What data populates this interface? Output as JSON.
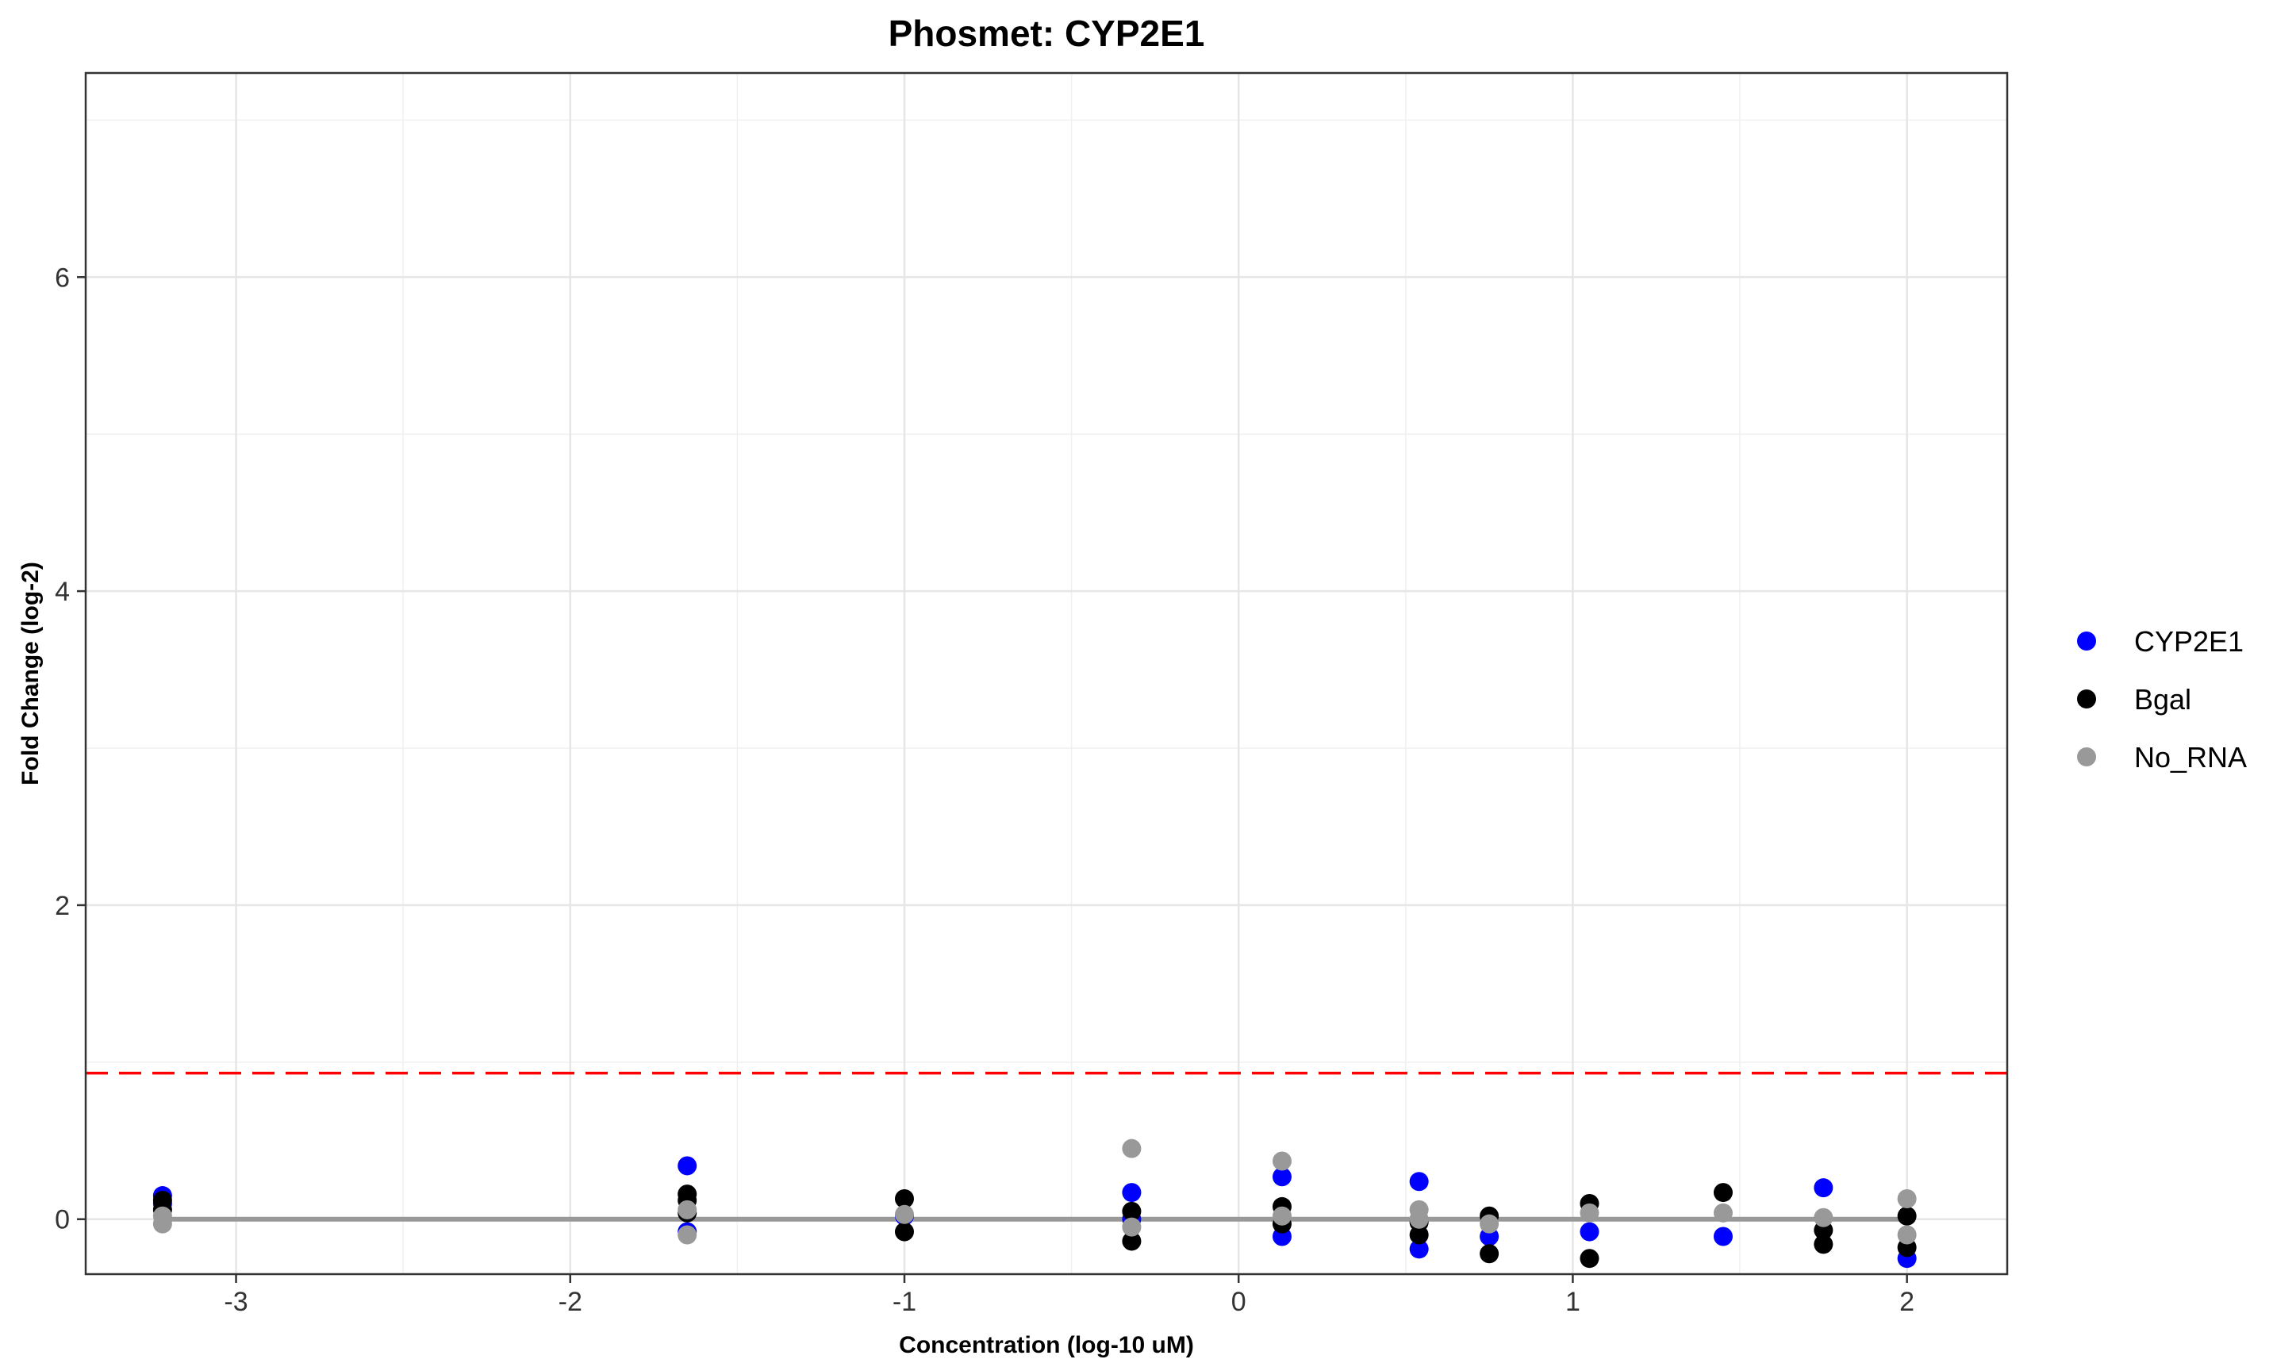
{
  "chart_data": {
    "type": "scatter",
    "title": "Phosmet: CYP2E1",
    "xlabel": "Concentration (log-10 uM)",
    "ylabel": "Fold Change (log-2)",
    "xlim": [
      -3.45,
      2.3
    ],
    "ylim": [
      -0.35,
      7.3
    ],
    "x_ticks": [
      -3,
      -2,
      -1,
      0,
      1,
      2
    ],
    "x_tick_labels": [
      "-3",
      "-2",
      "-1",
      "0",
      "1",
      "2"
    ],
    "y_ticks": [
      0,
      2,
      4,
      6
    ],
    "y_tick_labels": [
      "0",
      "2",
      "4",
      "6"
    ],
    "x_minor_ticks": [
      -2.5,
      -1.5,
      -0.5,
      0.5,
      1.5
    ],
    "y_minor_ticks": [
      1,
      3,
      5,
      7
    ],
    "grid": true,
    "legend_position": "right",
    "threshold_line": {
      "y": 0.93,
      "color": "#ff0000",
      "style": "dashed"
    },
    "baseline_line": {
      "y": 0,
      "color": "#999999"
    },
    "series": [
      {
        "name": "CYP2E1",
        "color": "#0000ff",
        "points": [
          [
            -3.22,
            0.15
          ],
          [
            -3.22,
            0.1
          ],
          [
            -1.65,
            0.34
          ],
          [
            -1.65,
            -0.08
          ],
          [
            -1.0,
            0.02
          ],
          [
            -0.32,
            0.17
          ],
          [
            -0.32,
            0.0
          ],
          [
            0.13,
            0.27
          ],
          [
            0.13,
            -0.11
          ],
          [
            0.54,
            0.24
          ],
          [
            0.54,
            -0.19
          ],
          [
            0.75,
            -0.11
          ],
          [
            1.05,
            -0.08
          ],
          [
            1.45,
            -0.11
          ],
          [
            1.75,
            0.2
          ],
          [
            2.0,
            -0.25
          ]
        ]
      },
      {
        "name": "Bgal",
        "color": "#000000",
        "points": [
          [
            -3.22,
            0.12
          ],
          [
            -3.22,
            0.06
          ],
          [
            -1.65,
            0.16
          ],
          [
            -1.65,
            0.12
          ],
          [
            -1.65,
            0.04
          ],
          [
            -1.0,
            0.13
          ],
          [
            -1.0,
            -0.08
          ],
          [
            -0.32,
            0.05
          ],
          [
            -0.32,
            -0.14
          ],
          [
            0.13,
            0.08
          ],
          [
            0.13,
            -0.03
          ],
          [
            0.54,
            -0.1
          ],
          [
            0.54,
            -0.02
          ],
          [
            0.75,
            0.02
          ],
          [
            0.75,
            -0.22
          ],
          [
            1.05,
            0.1
          ],
          [
            1.05,
            -0.25
          ],
          [
            1.45,
            0.17
          ],
          [
            1.75,
            -0.16
          ],
          [
            1.75,
            -0.07
          ],
          [
            2.0,
            0.02
          ],
          [
            2.0,
            -0.18
          ]
        ]
      },
      {
        "name": "No_RNA",
        "color": "#999999",
        "points": [
          [
            -3.22,
            0.02
          ],
          [
            -3.22,
            -0.03
          ],
          [
            -1.65,
            0.06
          ],
          [
            -1.65,
            -0.1
          ],
          [
            -1.0,
            0.03
          ],
          [
            -0.32,
            0.45
          ],
          [
            -0.32,
            -0.05
          ],
          [
            0.13,
            0.37
          ],
          [
            0.13,
            0.02
          ],
          [
            0.54,
            0.06
          ],
          [
            0.54,
            0.0
          ],
          [
            0.75,
            -0.03
          ],
          [
            1.05,
            0.04
          ],
          [
            1.45,
            0.04
          ],
          [
            1.75,
            0.01
          ],
          [
            2.0,
            0.13
          ],
          [
            2.0,
            -0.1
          ]
        ]
      }
    ]
  }
}
